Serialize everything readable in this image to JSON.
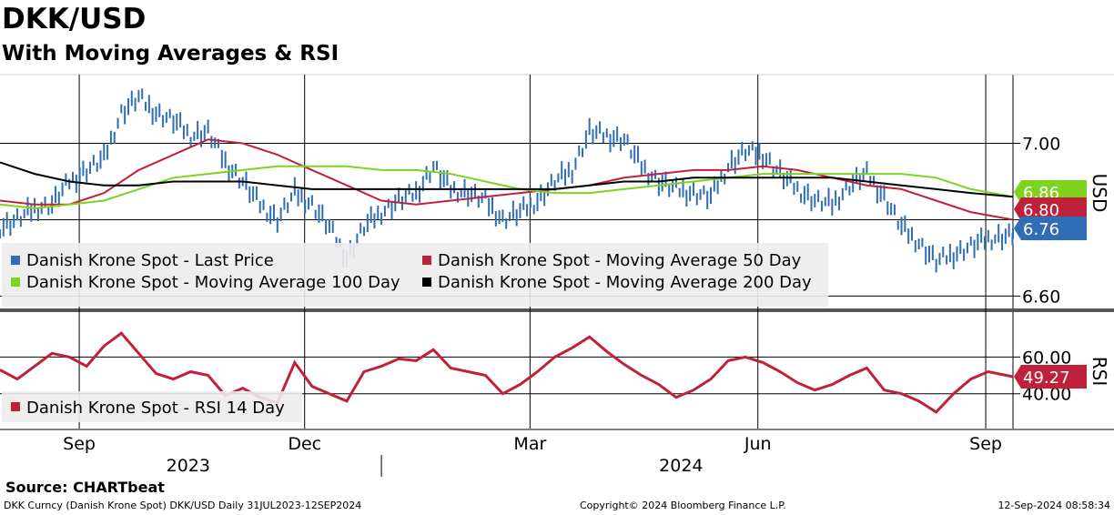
{
  "header": {
    "title": "DKK/USD",
    "subtitle": "With Moving Averages & RSI"
  },
  "footer": {
    "source": "Source: CHARTbeat",
    "left": "DKK Curncy (Danish Krone Spot) DKK/USD  Daily 31JUL2023-12SEP2024",
    "center": "Copyright© 2024 Bloomberg Finance L.P.",
    "right": "12-Sep-2024 08:58:34"
  },
  "colors": {
    "price": "#2f6db5",
    "ma50": "#c0213a",
    "ma100": "#7ed321",
    "ma200": "#000000",
    "rsi": "#c0213a",
    "legend_bg": "#ececec"
  },
  "chart_data": [
    {
      "type": "line",
      "panel": "price",
      "unit_label": "USD",
      "ylim": [
        6.57,
        7.18
      ],
      "yticks": [
        "7.00",
        "6.60"
      ],
      "ytick_values": [
        7.0,
        6.6
      ],
      "grid_y_values": [
        7.0,
        6.8,
        6.6
      ],
      "x_range": [
        "2023-07-31",
        "2024-09-12"
      ],
      "x_ticks": [
        {
          "label": "Sep",
          "date": "2023-09-01"
        },
        {
          "label": "Dec",
          "date": "2023-12-01"
        },
        {
          "label": "Mar",
          "date": "2024-03-01"
        },
        {
          "label": "Jun",
          "date": "2024-06-01"
        },
        {
          "label": "Sep",
          "date": "2024-09-01"
        }
      ],
      "year_labels": [
        {
          "label": "2023",
          "date": "2023-10-15"
        },
        {
          "label": "2024",
          "date": "2024-05-01"
        }
      ],
      "legend": [
        "Danish Krone Spot - Last Price",
        "Danish Krone Spot - Moving Average 50 Day",
        "Danish Krone Spot - Moving Average 100 Day",
        "Danish Krone Spot - Moving Average 200 Day"
      ],
      "last_value_tags": [
        {
          "series": "ma100",
          "label": "6.86",
          "value": 6.86
        },
        {
          "series": "ma50",
          "label": "6.80",
          "value": 6.8
        },
        {
          "series": "price",
          "label": "6.76",
          "value": 6.76
        }
      ],
      "series": [
        {
          "name": "Danish Krone Spot - Last Price",
          "key": "price",
          "style": "bar",
          "points": [
            [
              "2023-07-31",
              6.78
            ],
            [
              "2023-08-07",
              6.8
            ],
            [
              "2023-08-14",
              6.83
            ],
            [
              "2023-08-21",
              6.84
            ],
            [
              "2023-08-28",
              6.9
            ],
            [
              "2023-09-04",
              6.93
            ],
            [
              "2023-09-11",
              6.96
            ],
            [
              "2023-09-18",
              7.08
            ],
            [
              "2023-09-25",
              7.12
            ],
            [
              "2023-10-02",
              7.08
            ],
            [
              "2023-10-09",
              7.06
            ],
            [
              "2023-10-16",
              7.02
            ],
            [
              "2023-10-23",
              7.03
            ],
            [
              "2023-10-30",
              6.95
            ],
            [
              "2023-11-06",
              6.9
            ],
            [
              "2023-11-13",
              6.84
            ],
            [
              "2023-11-20",
              6.8
            ],
            [
              "2023-11-27",
              6.87
            ],
            [
              "2023-12-04",
              6.84
            ],
            [
              "2023-12-11",
              6.78
            ],
            [
              "2023-12-18",
              6.7
            ],
            [
              "2023-12-25",
              6.78
            ],
            [
              "2024-01-01",
              6.82
            ],
            [
              "2024-01-08",
              6.85
            ],
            [
              "2024-01-15",
              6.87
            ],
            [
              "2024-01-22",
              6.94
            ],
            [
              "2024-01-29",
              6.88
            ],
            [
              "2024-02-05",
              6.87
            ],
            [
              "2024-02-12",
              6.85
            ],
            [
              "2024-02-19",
              6.8
            ],
            [
              "2024-02-26",
              6.82
            ],
            [
              "2024-03-04",
              6.85
            ],
            [
              "2024-03-11",
              6.9
            ],
            [
              "2024-03-18",
              6.93
            ],
            [
              "2024-03-25",
              7.03
            ],
            [
              "2024-04-01",
              7.02
            ],
            [
              "2024-04-08",
              7.01
            ],
            [
              "2024-04-15",
              6.94
            ],
            [
              "2024-04-22",
              6.9
            ],
            [
              "2024-04-29",
              6.88
            ],
            [
              "2024-05-06",
              6.87
            ],
            [
              "2024-05-13",
              6.86
            ],
            [
              "2024-05-20",
              6.94
            ],
            [
              "2024-05-27",
              6.98
            ],
            [
              "2024-06-03",
              6.97
            ],
            [
              "2024-06-10",
              6.92
            ],
            [
              "2024-06-17",
              6.88
            ],
            [
              "2024-06-24",
              6.85
            ],
            [
              "2024-07-01",
              6.84
            ],
            [
              "2024-07-08",
              6.89
            ],
            [
              "2024-07-15",
              6.92
            ],
            [
              "2024-07-22",
              6.86
            ],
            [
              "2024-07-29",
              6.78
            ],
            [
              "2024-08-05",
              6.74
            ],
            [
              "2024-08-12",
              6.69
            ],
            [
              "2024-08-19",
              6.71
            ],
            [
              "2024-08-26",
              6.73
            ],
            [
              "2024-09-02",
              6.75
            ],
            [
              "2024-09-12",
              6.76
            ]
          ]
        },
        {
          "name": "Danish Krone Spot - Moving Average 50 Day",
          "key": "ma50",
          "style": "line",
          "points": [
            [
              "2023-07-31",
              6.85
            ],
            [
              "2023-08-14",
              6.84
            ],
            [
              "2023-08-28",
              6.84
            ],
            [
              "2023-09-11",
              6.87
            ],
            [
              "2023-09-25",
              6.93
            ],
            [
              "2023-10-09",
              6.97
            ],
            [
              "2023-10-23",
              7.01
            ],
            [
              "2023-11-06",
              7.0
            ],
            [
              "2023-11-20",
              6.97
            ],
            [
              "2023-12-04",
              6.93
            ],
            [
              "2023-12-18",
              6.89
            ],
            [
              "2024-01-01",
              6.85
            ],
            [
              "2024-01-15",
              6.84
            ],
            [
              "2024-01-29",
              6.85
            ],
            [
              "2024-02-12",
              6.86
            ],
            [
              "2024-02-26",
              6.87
            ],
            [
              "2024-03-11",
              6.88
            ],
            [
              "2024-03-25",
              6.89
            ],
            [
              "2024-04-08",
              6.91
            ],
            [
              "2024-04-22",
              6.92
            ],
            [
              "2024-05-06",
              6.93
            ],
            [
              "2024-05-20",
              6.93
            ],
            [
              "2024-06-03",
              6.94
            ],
            [
              "2024-06-17",
              6.93
            ],
            [
              "2024-07-01",
              6.91
            ],
            [
              "2024-07-15",
              6.89
            ],
            [
              "2024-07-29",
              6.88
            ],
            [
              "2024-08-12",
              6.85
            ],
            [
              "2024-08-26",
              6.82
            ],
            [
              "2024-09-12",
              6.8
            ]
          ]
        },
        {
          "name": "Danish Krone Spot - Moving Average 100 Day",
          "key": "ma100",
          "style": "line",
          "points": [
            [
              "2023-07-31",
              6.84
            ],
            [
              "2023-08-14",
              6.83
            ],
            [
              "2023-08-28",
              6.84
            ],
            [
              "2023-09-11",
              6.85
            ],
            [
              "2023-09-25",
              6.88
            ],
            [
              "2023-10-09",
              6.91
            ],
            [
              "2023-10-23",
              6.92
            ],
            [
              "2023-11-06",
              6.93
            ],
            [
              "2023-11-20",
              6.94
            ],
            [
              "2023-12-04",
              6.94
            ],
            [
              "2023-12-18",
              6.94
            ],
            [
              "2024-01-01",
              6.93
            ],
            [
              "2024-01-15",
              6.93
            ],
            [
              "2024-01-29",
              6.92
            ],
            [
              "2024-02-12",
              6.9
            ],
            [
              "2024-02-26",
              6.88
            ],
            [
              "2024-03-11",
              6.87
            ],
            [
              "2024-03-25",
              6.87
            ],
            [
              "2024-04-08",
              6.88
            ],
            [
              "2024-04-22",
              6.89
            ],
            [
              "2024-05-06",
              6.9
            ],
            [
              "2024-05-20",
              6.91
            ],
            [
              "2024-06-03",
              6.92
            ],
            [
              "2024-06-17",
              6.92
            ],
            [
              "2024-07-01",
              6.92
            ],
            [
              "2024-07-15",
              6.92
            ],
            [
              "2024-07-29",
              6.92
            ],
            [
              "2024-08-12",
              6.91
            ],
            [
              "2024-08-26",
              6.88
            ],
            [
              "2024-09-12",
              6.86
            ]
          ]
        },
        {
          "name": "Danish Krone Spot - Moving Average 200 Day",
          "key": "ma200",
          "style": "line",
          "points": [
            [
              "2023-07-31",
              6.95
            ],
            [
              "2023-08-14",
              6.92
            ],
            [
              "2023-08-28",
              6.9
            ],
            [
              "2023-09-11",
              6.89
            ],
            [
              "2023-09-25",
              6.89
            ],
            [
              "2023-10-09",
              6.9
            ],
            [
              "2023-10-23",
              6.9
            ],
            [
              "2023-11-06",
              6.9
            ],
            [
              "2023-11-20",
              6.89
            ],
            [
              "2023-12-04",
              6.88
            ],
            [
              "2023-12-18",
              6.88
            ],
            [
              "2024-01-01",
              6.88
            ],
            [
              "2024-01-15",
              6.88
            ],
            [
              "2024-01-29",
              6.88
            ],
            [
              "2024-02-12",
              6.88
            ],
            [
              "2024-02-26",
              6.88
            ],
            [
              "2024-03-11",
              6.88
            ],
            [
              "2024-03-25",
              6.89
            ],
            [
              "2024-04-08",
              6.9
            ],
            [
              "2024-04-22",
              6.9
            ],
            [
              "2024-05-06",
              6.91
            ],
            [
              "2024-05-20",
              6.91
            ],
            [
              "2024-06-03",
              6.91
            ],
            [
              "2024-06-17",
              6.91
            ],
            [
              "2024-07-01",
              6.91
            ],
            [
              "2024-07-15",
              6.9
            ],
            [
              "2024-07-29",
              6.89
            ],
            [
              "2024-08-12",
              6.88
            ],
            [
              "2024-08-26",
              6.87
            ],
            [
              "2024-09-12",
              6.86
            ]
          ]
        }
      ]
    },
    {
      "type": "line",
      "panel": "rsi",
      "unit_label": "RSI",
      "ylim": [
        21,
        83
      ],
      "yticks": [
        "60.00",
        "40.00"
      ],
      "ytick_values": [
        60,
        40
      ],
      "grid_y_values": [
        60,
        40
      ],
      "legend": [
        "Danish Krone Spot - RSI 14 Day"
      ],
      "last_value_tags": [
        {
          "series": "rsi",
          "label": "49.27",
          "value": 49.27
        }
      ],
      "series": [
        {
          "name": "Danish Krone Spot - RSI 14 Day",
          "key": "rsi",
          "style": "line",
          "points": [
            [
              "2023-07-31",
              53
            ],
            [
              "2023-08-07",
              48
            ],
            [
              "2023-08-14",
              55
            ],
            [
              "2023-08-21",
              62
            ],
            [
              "2023-08-28",
              60
            ],
            [
              "2023-09-04",
              55
            ],
            [
              "2023-09-11",
              66
            ],
            [
              "2023-09-18",
              73
            ],
            [
              "2023-09-25",
              62
            ],
            [
              "2023-10-02",
              51
            ],
            [
              "2023-10-09",
              48
            ],
            [
              "2023-10-16",
              52
            ],
            [
              "2023-10-23",
              50
            ],
            [
              "2023-10-30",
              39
            ],
            [
              "2023-11-06",
              43
            ],
            [
              "2023-11-13",
              38
            ],
            [
              "2023-11-20",
              35
            ],
            [
              "2023-11-27",
              57
            ],
            [
              "2023-12-04",
              44
            ],
            [
              "2023-12-11",
              40
            ],
            [
              "2023-12-18",
              36
            ],
            [
              "2023-12-25",
              52
            ],
            [
              "2024-01-01",
              55
            ],
            [
              "2024-01-08",
              59
            ],
            [
              "2024-01-15",
              58
            ],
            [
              "2024-01-22",
              64
            ],
            [
              "2024-01-29",
              54
            ],
            [
              "2024-02-05",
              52
            ],
            [
              "2024-02-12",
              50
            ],
            [
              "2024-02-19",
              40
            ],
            [
              "2024-02-26",
              45
            ],
            [
              "2024-03-04",
              52
            ],
            [
              "2024-03-11",
              60
            ],
            [
              "2024-03-18",
              65
            ],
            [
              "2024-03-25",
              71
            ],
            [
              "2024-04-01",
              63
            ],
            [
              "2024-04-08",
              56
            ],
            [
              "2024-04-15",
              50
            ],
            [
              "2024-04-22",
              45
            ],
            [
              "2024-04-29",
              38
            ],
            [
              "2024-05-06",
              42
            ],
            [
              "2024-05-13",
              48
            ],
            [
              "2024-05-20",
              58
            ],
            [
              "2024-05-27",
              60
            ],
            [
              "2024-06-03",
              57
            ],
            [
              "2024-06-10",
              52
            ],
            [
              "2024-06-17",
              46
            ],
            [
              "2024-06-24",
              42
            ],
            [
              "2024-07-01",
              45
            ],
            [
              "2024-07-08",
              50
            ],
            [
              "2024-07-15",
              54
            ],
            [
              "2024-07-22",
              42
            ],
            [
              "2024-07-29",
              40
            ],
            [
              "2024-08-05",
              36
            ],
            [
              "2024-08-12",
              30
            ],
            [
              "2024-08-19",
              40
            ],
            [
              "2024-08-26",
              48
            ],
            [
              "2024-09-02",
              52
            ],
            [
              "2024-09-12",
              49.27
            ]
          ]
        }
      ]
    }
  ]
}
